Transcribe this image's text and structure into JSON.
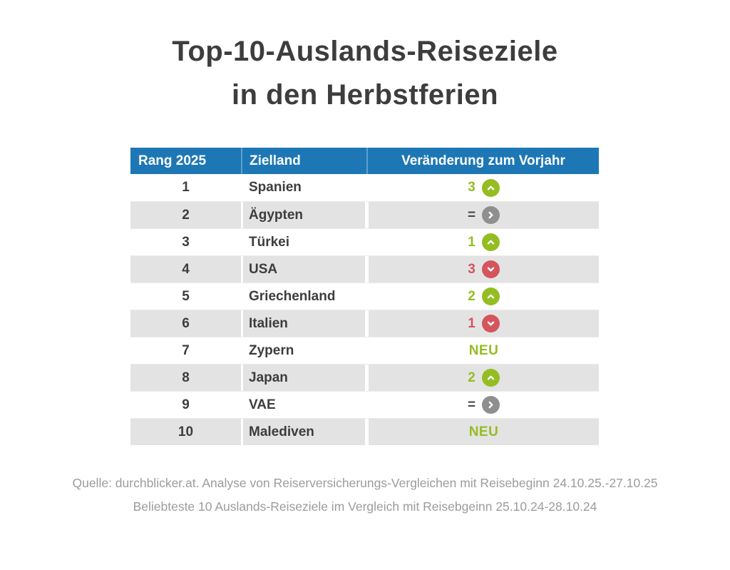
{
  "title": {
    "line1": "Top-10-Auslands-Reiseziele",
    "line2": "in den Herbstferien"
  },
  "table": {
    "headers": [
      "Rang 2025",
      "Zielland",
      "Veränderung zum Vorjahr"
    ],
    "rows": [
      {
        "rank": "1",
        "country": "Spanien",
        "change": "3",
        "direction": "up"
      },
      {
        "rank": "2",
        "country": "Ägypten",
        "change": "=",
        "direction": "same"
      },
      {
        "rank": "3",
        "country": "Türkei",
        "change": "1",
        "direction": "up"
      },
      {
        "rank": "4",
        "country": "USA",
        "change": "3",
        "direction": "down"
      },
      {
        "rank": "5",
        "country": "Griechenland",
        "change": "2",
        "direction": "up"
      },
      {
        "rank": "6",
        "country": "Italien",
        "change": "1",
        "direction": "down"
      },
      {
        "rank": "7",
        "country": "Zypern",
        "change": "NEU",
        "direction": "new"
      },
      {
        "rank": "8",
        "country": "Japan",
        "change": "2",
        "direction": "up"
      },
      {
        "rank": "9",
        "country": "VAE",
        "change": "=",
        "direction": "same"
      },
      {
        "rank": "10",
        "country": "Malediven",
        "change": "NEU",
        "direction": "new"
      }
    ]
  },
  "footer": {
    "line1": "Quelle: durchblicker.at. Analyse von Reiserversicherungs-Vergleichen mit Reisebeginn 24.10.25.-27.10.25",
    "line2": "Beliebteste 10 Auslands-Reiseziele im Vergleich mit Reisebgeinn 25.10.24-28.10.24"
  },
  "colors": {
    "header_blue": "#1d77b5",
    "header_divider_blue": "#5ea0cc",
    "positive_green": "#94bd21",
    "negative_red": "#d4555c",
    "neutral_circle_gray": "#8f8f8f",
    "row_stripe_gray": "#e3e3e3",
    "title_text": "#3d3d3d",
    "footer_text": "#9c9c9c"
  },
  "chart_data": {
    "type": "table",
    "title": "Top-10-Auslands-Reiseziele in den Herbstferien",
    "columns": [
      "Rang 2025",
      "Zielland",
      "Veränderung zum Vorjahr"
    ],
    "rows": [
      {
        "rang": 1,
        "zielland": "Spanien",
        "veraenderung": "+3"
      },
      {
        "rang": 2,
        "zielland": "Ägypten",
        "veraenderung": "="
      },
      {
        "rang": 3,
        "zielland": "Türkei",
        "veraenderung": "+1"
      },
      {
        "rang": 4,
        "zielland": "USA",
        "veraenderung": "-3"
      },
      {
        "rang": 5,
        "zielland": "Griechenland",
        "veraenderung": "+2"
      },
      {
        "rang": 6,
        "zielland": "Italien",
        "veraenderung": "-1"
      },
      {
        "rang": 7,
        "zielland": "Zypern",
        "veraenderung": "NEU"
      },
      {
        "rang": 8,
        "zielland": "Japan",
        "veraenderung": "+2"
      },
      {
        "rang": 9,
        "zielland": "VAE",
        "veraenderung": "="
      },
      {
        "rang": 10,
        "zielland": "Malediven",
        "veraenderung": "NEU"
      }
    ],
    "source_note": "Quelle: durchblicker.at"
  }
}
